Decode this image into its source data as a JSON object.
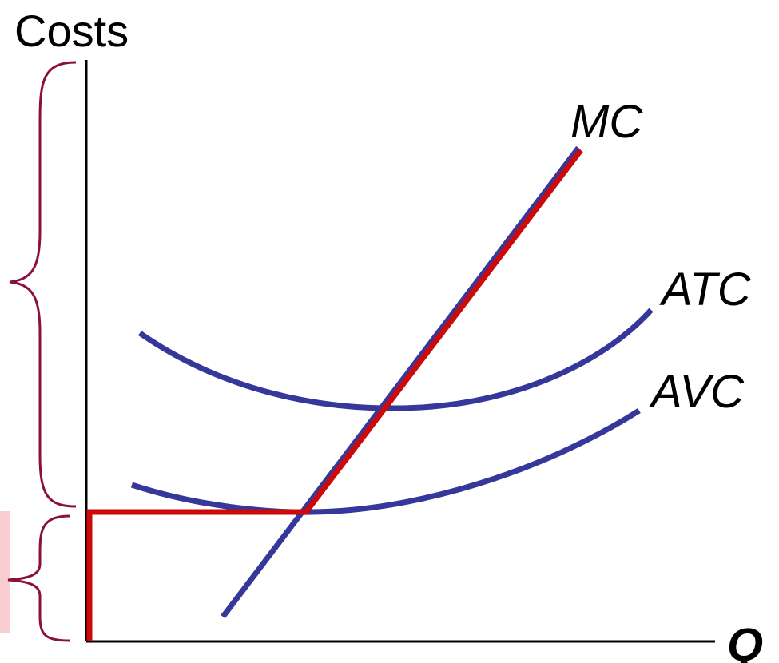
{
  "labels": {
    "y_axis": "Costs",
    "x_axis": "Q",
    "mc": "MC",
    "atc": "ATC",
    "avc": "AVC"
  },
  "colors": {
    "axis": "#000000",
    "curves": "#35379a",
    "supply": "#cc0a0a",
    "brace": "#8b1040",
    "marker": "#f9cdd1"
  }
}
